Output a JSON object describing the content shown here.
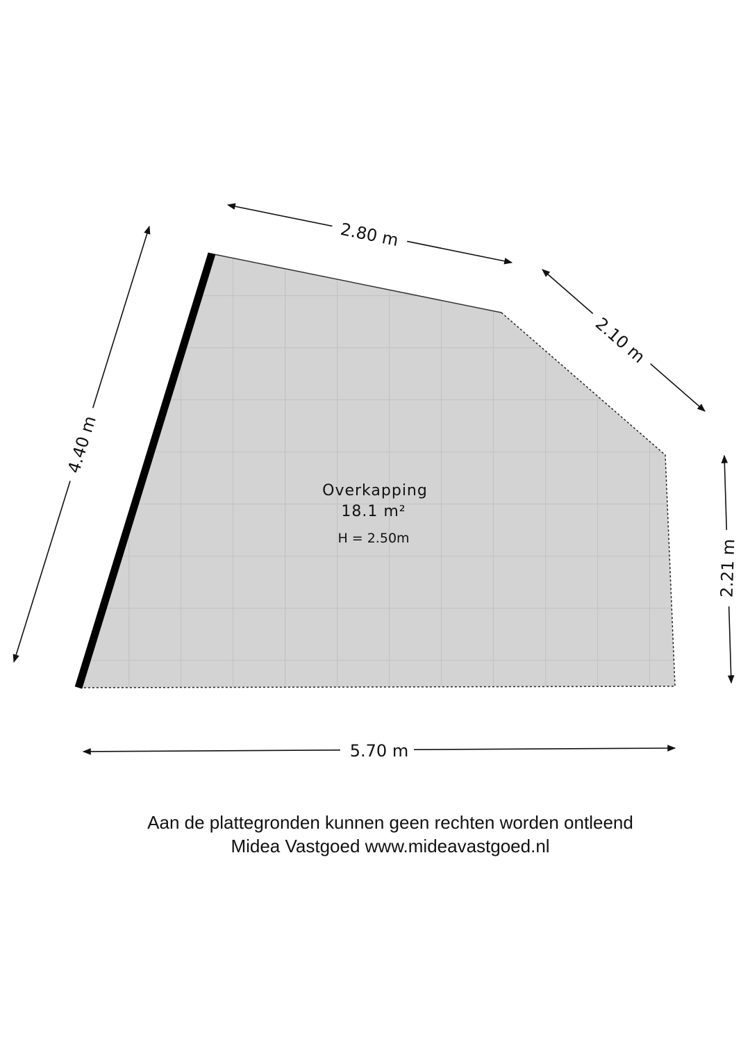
{
  "room": {
    "name": "Overkapping",
    "area": "18.1 m²",
    "height": "H = 2.50m"
  },
  "dimensions": {
    "top": "2.80 m",
    "diagonal": "2.10 m",
    "left": "4.40 m",
    "right": "2.21 m",
    "bottom": "5.70 m"
  },
  "footer": {
    "disclaimer": "Aan de plattegronden kunnen geen rechten worden ontleend",
    "credit": "Midea Vastgoed www.mideavastgoed.nl"
  }
}
